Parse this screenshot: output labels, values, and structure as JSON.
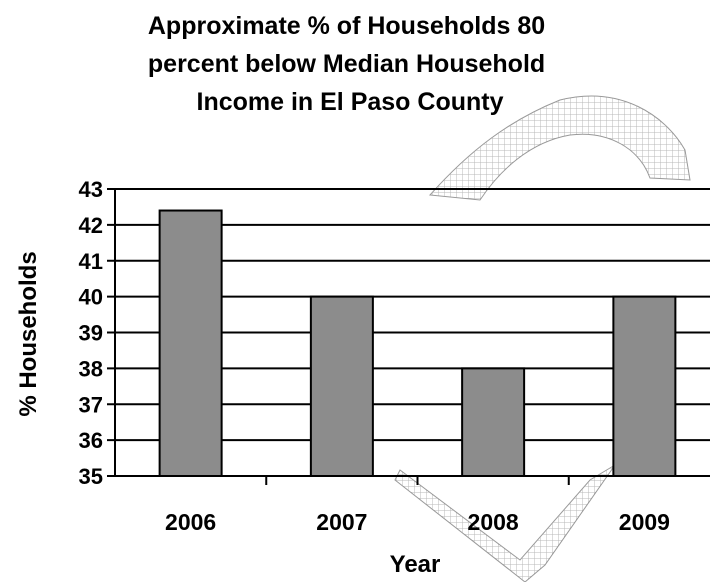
{
  "chart_data": {
    "type": "bar",
    "title": "Approximate % of Households 80 percent below Median Household Income in El Paso County",
    "title_lines": [
      "Approximate % of Households 80",
      "percent below Median Household",
      "Income in El Paso County"
    ],
    "xlabel": "Year",
    "ylabel": "% Households",
    "categories": [
      "2006",
      "2007",
      "2008",
      "2009"
    ],
    "values": [
      42.4,
      40,
      38,
      40
    ],
    "ylim": [
      35,
      43
    ],
    "yticks": [
      "35",
      "36",
      "37",
      "38",
      "39",
      "40",
      "41",
      "42",
      "43"
    ],
    "grid": true,
    "legend": "none",
    "bar_color": "#8c8c8c",
    "watermark_color": "#c8c8c8"
  }
}
